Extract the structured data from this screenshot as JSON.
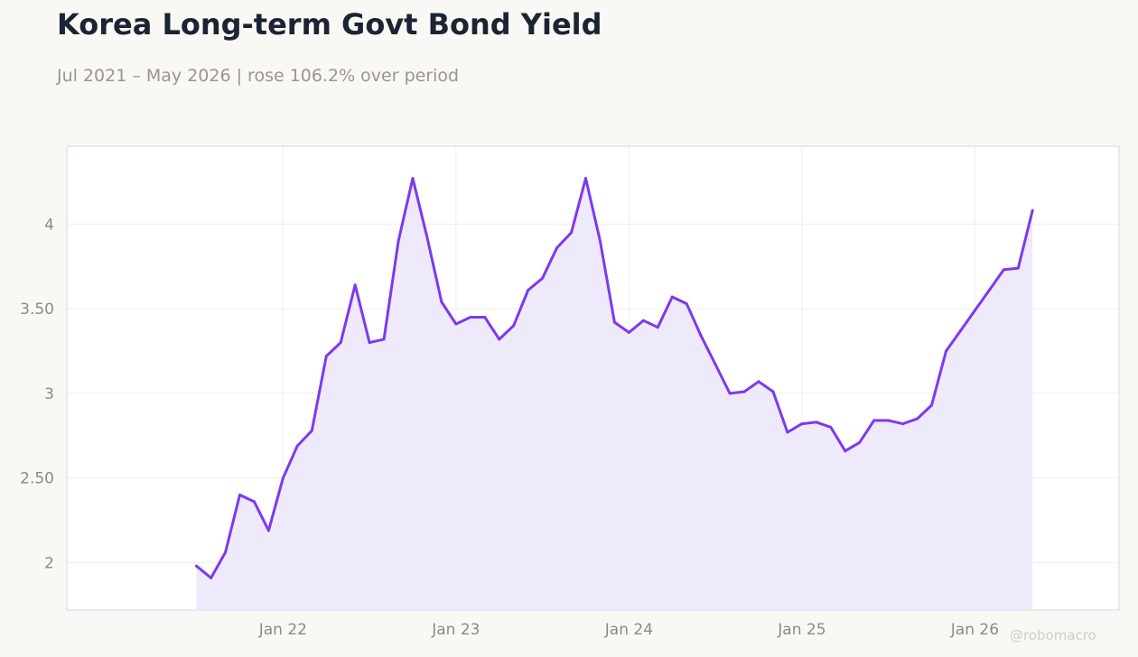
{
  "title": "Korea Long-term Govt Bond Yield",
  "subtitle": "Jul 2021 – May 2026 | rose 106.2% over period",
  "watermark": "@robomacro",
  "colors": {
    "line": "#7c3aed",
    "fill": "#efe9fc",
    "background": "#f9f8f5",
    "plot_background": "#ffffff",
    "title": "#1c2333"
  },
  "chart_data": {
    "type": "area",
    "title": "Korea Long-term Govt Bond Yield",
    "subtitle": "Jul 2021 – May 2026 | rose 106.2% over period",
    "xlabel": "",
    "ylabel": "",
    "x_start": "2021-07",
    "x_frequency": "monthly",
    "x_ticks": [
      "Jan 22",
      "Jan 23",
      "Jan 24",
      "Jan 25",
      "Jan 26"
    ],
    "x_tick_dates": [
      "2022-01",
      "2023-01",
      "2024-01",
      "2025-01",
      "2026-01"
    ],
    "x_range": [
      "2020-10",
      "2026-11"
    ],
    "y_ticks": [
      2,
      2.5,
      3,
      3.5,
      4
    ],
    "y_tick_labels": [
      "2",
      "2.50",
      "3",
      "3.50",
      "4"
    ],
    "ylim": [
      1.72,
      4.46
    ],
    "grid": true,
    "legend": "none",
    "series": [
      {
        "values": [
          1.98,
          1.91,
          2.06,
          2.4,
          2.36,
          2.19,
          2.5,
          2.69,
          2.78,
          3.22,
          3.3,
          3.64,
          3.3,
          3.32,
          3.9,
          4.27,
          3.92,
          3.54,
          3.41,
          3.45,
          3.45,
          3.32,
          3.4,
          3.61,
          3.68,
          3.86,
          3.95,
          4.27,
          3.9,
          3.42,
          3.36,
          3.43,
          3.39,
          3.57,
          3.53,
          3.34,
          3.17,
          3.0,
          3.01,
          3.07,
          3.01,
          2.77,
          2.82,
          2.83,
          2.8,
          2.66,
          2.71,
          2.84,
          2.84,
          2.82,
          2.85,
          2.93,
          3.25,
          3.37,
          3.49,
          3.61,
          3.73,
          3.74,
          4.08
        ]
      }
    ]
  }
}
